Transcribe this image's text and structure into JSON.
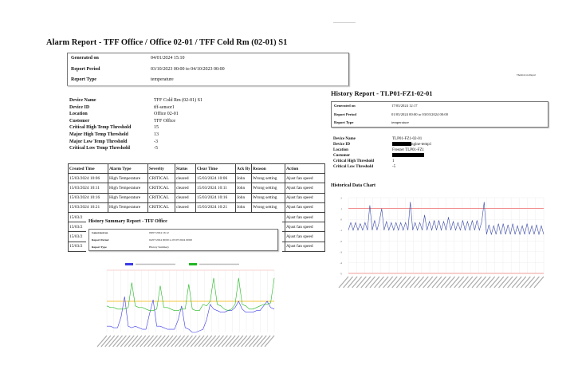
{
  "alarm_report": {
    "title": "Alarm Report - TFF Office / Office 02-01 / TFF Cold Rm (02-01) S1",
    "meta": [
      [
        "Generated on",
        "04/01/2024 15:10"
      ],
      [
        "Report Period",
        "03/10/2023 00:00 to 04/10/2023 00:00"
      ],
      [
        "Report Type",
        "temperature"
      ]
    ],
    "device": [
      [
        "Device Name",
        "TFF Cold Rm (02-01) S1"
      ],
      [
        "Device ID",
        "tff-sensor1"
      ],
      [
        "Location",
        "Office 02-01"
      ],
      [
        "Customer",
        "TFF Office"
      ],
      [
        "Critical High Temp Threshold",
        "15"
      ],
      [
        "Major High Temp Threshold",
        "13"
      ],
      [
        "Major Low Temp Threshold",
        "-3"
      ],
      [
        "Critical Low Temp Threshold",
        "-5"
      ]
    ],
    "table": {
      "columns": [
        "Created Time",
        "Alarm Type",
        "Severity",
        "Status",
        "Clear Time",
        "Ack By",
        "Reason",
        "Action"
      ],
      "rows": [
        [
          "15/03/2024 10:06",
          "High Temperature",
          "CRITICAL",
          "cleared",
          "15/03/2024 10:06",
          "John",
          "Wrong setting",
          "Ajust fan speed"
        ],
        [
          "15/03/2024 10:11",
          "High Temperature",
          "CRITICAL",
          "cleared",
          "15/03/2024 10:11",
          "John",
          "Wrong setting",
          "Ajust fan speed"
        ],
        [
          "15/03/2024 10:16",
          "High Temperature",
          "CRITICAL",
          "cleared",
          "15/03/2024 10:16",
          "John",
          "Wrong setting",
          "Ajust fan speed"
        ],
        [
          "15/03/2024 10:21",
          "High Temperature",
          "CRITICAL",
          "cleared",
          "15/03/2024 10:21",
          "John",
          "Wrong setting",
          "Ajust fan speed"
        ],
        [
          "15/03/2",
          "",
          "",
          "",
          "",
          "",
          "",
          "Ajust fan speed"
        ],
        [
          "15/03/2",
          "",
          "",
          "",
          "",
          "",
          "",
          "Ajust fan speed"
        ],
        [
          "15/03/2",
          "",
          "",
          "",
          "",
          "",
          "",
          "Ajust fan speed"
        ],
        [
          "15/03/2",
          "",
          "",
          "",
          "",
          "",
          "",
          "Ajust fan speed"
        ]
      ]
    }
  },
  "history_report": {
    "brand": "ThermoCare Report",
    "title": "History Report - TLP01-FZ1-02-01",
    "meta": [
      [
        "Generated on",
        "17/03/2024 12:17"
      ],
      [
        "Report Period",
        "01/03/2024 00:00 to 03/03/2024 00:00"
      ],
      [
        "Report Type",
        "temperature"
      ]
    ],
    "device": [
      [
        "Device Name",
        "TLP01-FZ1-02-01"
      ],
      [
        "Device ID",
        "ngine-temp1"
      ],
      [
        "Location",
        "Freezer TLP01-FZ1"
      ],
      [
        "Customer",
        ""
      ],
      [
        "Critical High Threshold",
        "1"
      ],
      [
        "Critical Low Threshold",
        "-5"
      ]
    ],
    "chart_heading": "Historical Data Chart"
  },
  "summary_report": {
    "title": "History Summary Report - TFF Office",
    "meta": [
      [
        "Generated on",
        "08/07/2024 16:12"
      ],
      [
        "Report Period",
        "04/07/2024 00:00 to 05/07/2024 00:00"
      ],
      [
        "Report Type",
        "History Summary"
      ]
    ]
  },
  "chart_data": [
    {
      "type": "line",
      "title": "",
      "yticks": [
        2,
        1,
        0,
        -1,
        -2,
        -3,
        -4,
        -5
      ],
      "ylim": [
        -5,
        2
      ],
      "grid": true,
      "thresholds": [
        {
          "value": 1,
          "color": "#f08080"
        },
        {
          "value": -5,
          "color": "#f08080"
        }
      ],
      "series": [
        {
          "color": "#3b4aa8",
          "values": [
            -1,
            -0.3,
            -1,
            -0.3,
            -1,
            -0.4,
            -1,
            -0.3,
            -1,
            1.3,
            -1,
            -0.1,
            -1,
            -0.2,
            1.0,
            -1,
            -0.2,
            -1,
            -0.3,
            -1,
            -0.3,
            -1,
            -0.3,
            -1,
            -0.3,
            -1,
            1.6,
            -1,
            -0.3,
            -1,
            -0.3,
            -1,
            0.4,
            -1,
            -0.2,
            -1,
            -0.1,
            -1,
            -0.1,
            -1,
            -0.2,
            -1,
            0.2,
            -1,
            -0.2,
            -1,
            -0.3,
            -1,
            -0.1,
            -1,
            -0.2,
            -1,
            -0.1,
            -1,
            -0.1,
            -1,
            -0.2,
            1.6,
            -1.4,
            -0.5,
            -1.4,
            -0.6,
            -1.4,
            -0.4,
            -1.4,
            -0.4,
            -1.4,
            -0.5,
            -1.4,
            -0.4,
            -1.4,
            -0.6,
            -1.4,
            -0.6,
            -1.4,
            -0.4,
            -1.4,
            -0.6,
            -1.4,
            -0.5,
            -1.4,
            -0.6,
            -1.4
          ]
        }
      ]
    },
    {
      "type": "line",
      "title": "",
      "ylim": [
        2,
        6
      ],
      "grid": true,
      "thresholds": [
        {
          "value": 4,
          "color": "#f0b000"
        },
        {
          "value": 6,
          "color": "#f8c0c0"
        }
      ],
      "series": [
        {
          "color": "#3a3ae8",
          "values": [
            2.4,
            2.4,
            2.3,
            2.3,
            3.0,
            4.3,
            2.4,
            2.3,
            2.4,
            2.3,
            2.2,
            2.2,
            3.2,
            4.1,
            2.4,
            2.4,
            2.3,
            2.2,
            2.2,
            2.2,
            2.8,
            3.7,
            2.3,
            2.2,
            2.0,
            2.0,
            2.1,
            2.2,
            2.8,
            3.8,
            3.5,
            3.4,
            3.3,
            3.3,
            3.4,
            3.4,
            3.6,
            4.0,
            3.5,
            3.3,
            3.3,
            3.3,
            3.4,
            3.4,
            3.7,
            4.0,
            3.6,
            3.5
          ]
        },
        {
          "color": "#22b822",
          "values": [
            3.7,
            3.6,
            3.6,
            3.5,
            3.5,
            3.5,
            3.6,
            5.2,
            3.7,
            3.6,
            3.6,
            3.5,
            3.4,
            3.4,
            3.5,
            5.0,
            3.6,
            3.6,
            3.5,
            3.4,
            3.4,
            3.5,
            3.5,
            5.1,
            3.5,
            3.4,
            3.4,
            3.8,
            3.7,
            4.0,
            5.5,
            3.8,
            3.7,
            3.5,
            3.4,
            3.5,
            3.8,
            5.5,
            3.8,
            3.7,
            3.5,
            3.5,
            3.6,
            3.7,
            3.8,
            3.8,
            3.9,
            5.5
          ]
        }
      ]
    }
  ]
}
